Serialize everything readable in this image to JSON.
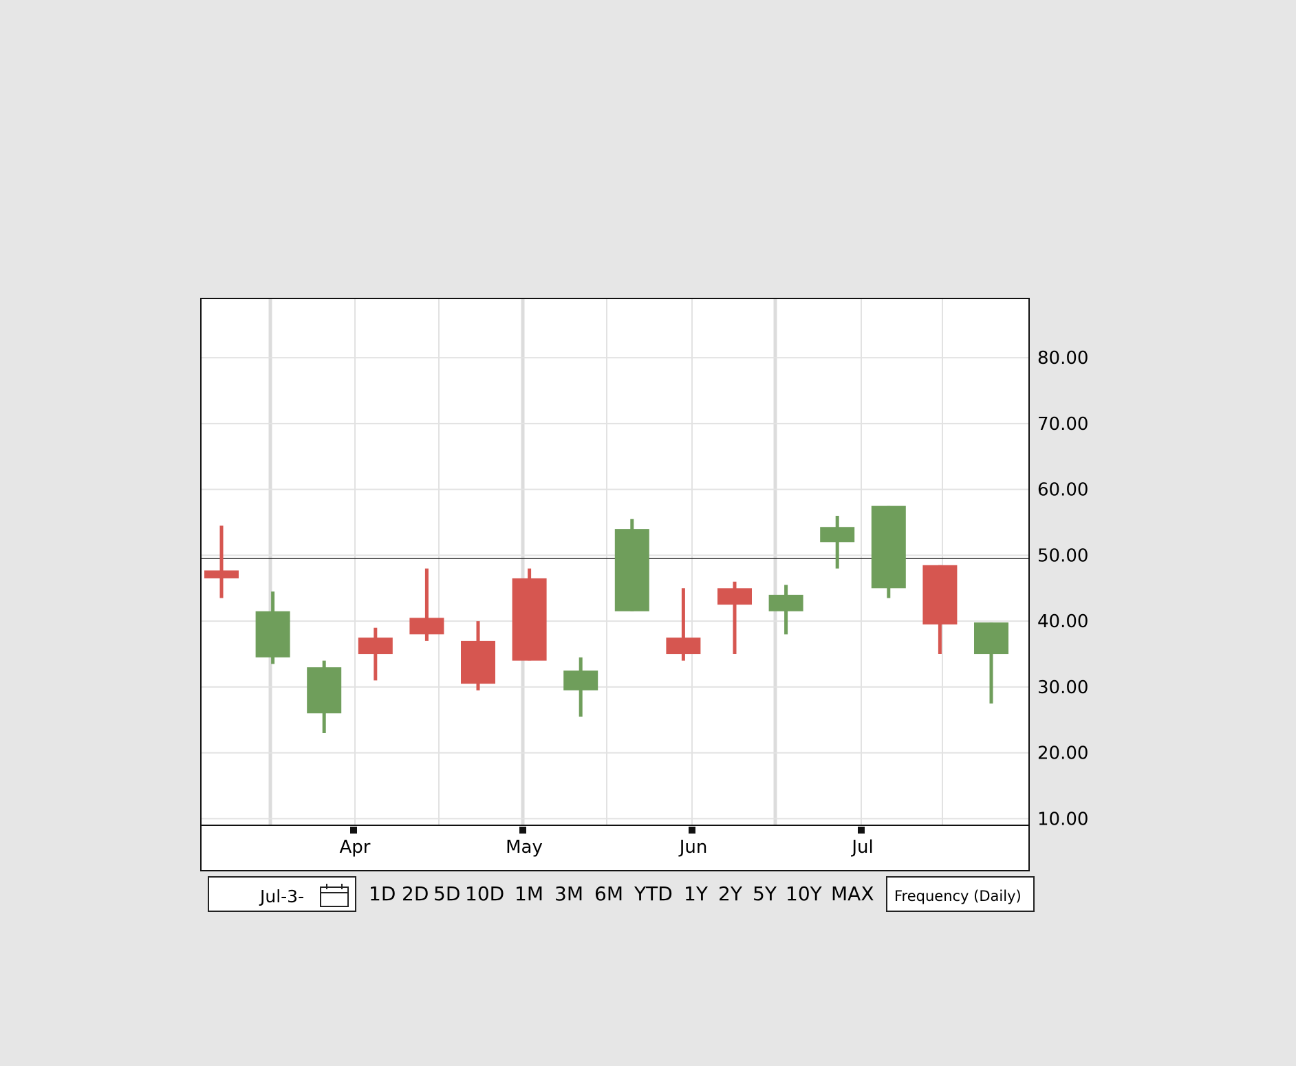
{
  "chart_data": {
    "type": "candlestick",
    "y_ticks": [
      "10.00",
      "20.00",
      "30.00",
      "40.00",
      "50.00",
      "60.00",
      "70.00",
      "80.00"
    ],
    "ylim": [
      9,
      89
    ],
    "reference_line": 49.5,
    "x_months": [
      "Apr",
      "May",
      "Jun",
      "Jul"
    ],
    "candles": [
      {
        "open": 47.7,
        "close": 46.5,
        "high": 54.5,
        "low": 43.5
      },
      {
        "open": 34.5,
        "close": 41.5,
        "high": 44.5,
        "low": 33.5
      },
      {
        "open": 26.0,
        "close": 33.0,
        "high": 34.0,
        "low": 23.0
      },
      {
        "open": 37.5,
        "close": 35.0,
        "high": 39.0,
        "low": 31.0
      },
      {
        "open": 40.5,
        "close": 38.0,
        "high": 48.0,
        "low": 37.0
      },
      {
        "open": 37.0,
        "close": 30.5,
        "high": 40.0,
        "low": 29.5
      },
      {
        "open": 46.5,
        "close": 34.0,
        "high": 48.0,
        "low": 34.0
      },
      {
        "open": 29.5,
        "close": 32.5,
        "high": 34.5,
        "low": 25.5
      },
      {
        "open": 41.5,
        "close": 54.0,
        "high": 55.5,
        "low": 41.5
      },
      {
        "open": 37.5,
        "close": 35.0,
        "high": 45.0,
        "low": 34.0
      },
      {
        "open": 45.0,
        "close": 42.5,
        "high": 46.0,
        "low": 35.0
      },
      {
        "open": 41.5,
        "close": 44.0,
        "high": 45.5,
        "low": 38.0
      },
      {
        "open": 52.0,
        "close": 54.3,
        "high": 56.0,
        "low": 48.0
      },
      {
        "open": 45.0,
        "close": 57.5,
        "high": 57.5,
        "low": 43.5
      },
      {
        "open": 48.5,
        "close": 39.5,
        "high": 48.5,
        "low": 35.0
      },
      {
        "open": 35.0,
        "close": 39.8,
        "high": 39.8,
        "low": 27.5
      }
    ],
    "colors": {
      "up": "#6f9e5b",
      "down": "#d65650"
    }
  },
  "toolbar": {
    "date_value": "Jul-3-",
    "ranges": [
      "1D",
      "2D",
      "5D",
      "10D",
      "1M",
      "3M",
      "6M",
      "YTD",
      "1Y",
      "2Y",
      "5Y",
      "10Y",
      "MAX"
    ],
    "frequency_label": "Frequency  (Daily)"
  }
}
